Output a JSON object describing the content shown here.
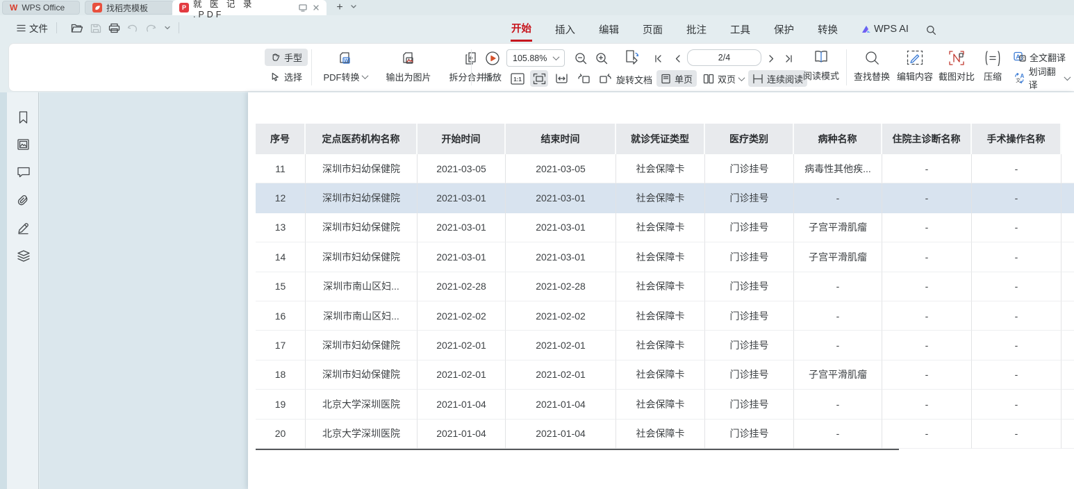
{
  "tabs": {
    "wps_office": "WPS Office",
    "docer": "找稻壳模板",
    "document": "就 医 记 录 .PDF"
  },
  "menubar": {
    "file": "文件",
    "items": [
      "开始",
      "插入",
      "编辑",
      "页面",
      "批注",
      "工具",
      "保护",
      "转换"
    ],
    "active_item": "开始",
    "ai": "WPS AI"
  },
  "toolbar": {
    "hand": "手型",
    "select": "选择",
    "pdf_convert": "PDF转换",
    "export_image": "输出为图片",
    "split_merge": "拆分合并",
    "play": "播放",
    "zoom_value": "105.88%",
    "one_to_one": "1:1",
    "rotate_doc": "旋转文档",
    "page_indicator": "2/4",
    "single_page": "单页",
    "double_page": "双页",
    "continuous_read": "连续阅读",
    "read_mode": "阅读模式",
    "find_replace": "查找替换",
    "edit_content": "编辑内容",
    "screenshot_compare": "截图对比",
    "compress": "压缩",
    "full_translate": "全文翻译",
    "word_translate": "划词翻译"
  },
  "sidebar_icons": [
    "bookmark",
    "thumbnail",
    "comment",
    "attachment",
    "signature",
    "layers"
  ],
  "table": {
    "headers": [
      "序号",
      "定点医药机构名称",
      "开始时间",
      "结束时间",
      "就诊凭证类型",
      "医疗类别",
      "病种名称",
      "住院主诊断名称",
      "手术操作名称"
    ],
    "rows": [
      {
        "highlighted": false,
        "cells": [
          "11",
          "深圳市妇幼保健院",
          "2021-03-05",
          "2021-03-05",
          "社会保障卡",
          "门诊挂号",
          "病毒性其他疾...",
          "-",
          "-"
        ]
      },
      {
        "highlighted": true,
        "cells": [
          "12",
          "深圳市妇幼保健院",
          "2021-03-01",
          "2021-03-01",
          "社会保障卡",
          "门诊挂号",
          "-",
          "-",
          "-"
        ]
      },
      {
        "highlighted": false,
        "cells": [
          "13",
          "深圳市妇幼保健院",
          "2021-03-01",
          "2021-03-01",
          "社会保障卡",
          "门诊挂号",
          "子宫平滑肌瘤",
          "-",
          "-"
        ]
      },
      {
        "highlighted": false,
        "cells": [
          "14",
          "深圳市妇幼保健院",
          "2021-03-01",
          "2021-03-01",
          "社会保障卡",
          "门诊挂号",
          "子宫平滑肌瘤",
          "-",
          "-"
        ]
      },
      {
        "highlighted": false,
        "cells": [
          "15",
          "深圳市南山区妇...",
          "2021-02-28",
          "2021-02-28",
          "社会保障卡",
          "门诊挂号",
          "-",
          "-",
          "-"
        ]
      },
      {
        "highlighted": false,
        "cells": [
          "16",
          "深圳市南山区妇...",
          "2021-02-02",
          "2021-02-02",
          "社会保障卡",
          "门诊挂号",
          "-",
          "-",
          "-"
        ]
      },
      {
        "highlighted": false,
        "cells": [
          "17",
          "深圳市妇幼保健院",
          "2021-02-01",
          "2021-02-01",
          "社会保障卡",
          "门诊挂号",
          "-",
          "-",
          "-"
        ]
      },
      {
        "highlighted": false,
        "cells": [
          "18",
          "深圳市妇幼保健院",
          "2021-02-01",
          "2021-02-01",
          "社会保障卡",
          "门诊挂号",
          "子宫平滑肌瘤",
          "-",
          "-"
        ]
      },
      {
        "highlighted": false,
        "cells": [
          "19",
          "北京大学深圳医院",
          "2021-01-04",
          "2021-01-04",
          "社会保障卡",
          "门诊挂号",
          "-",
          "-",
          "-"
        ]
      },
      {
        "highlighted": false,
        "cells": [
          "20",
          "北京大学深圳医院",
          "2021-01-04",
          "2021-01-04",
          "社会保障卡",
          "门诊挂号",
          "-",
          "-",
          "-"
        ]
      }
    ]
  },
  "colors": {
    "accent_red": "#c7161e",
    "row_highlight": "#d8e3ef",
    "header_bg": "#e8eaed",
    "chrome_bg": "#e4edf0"
  }
}
